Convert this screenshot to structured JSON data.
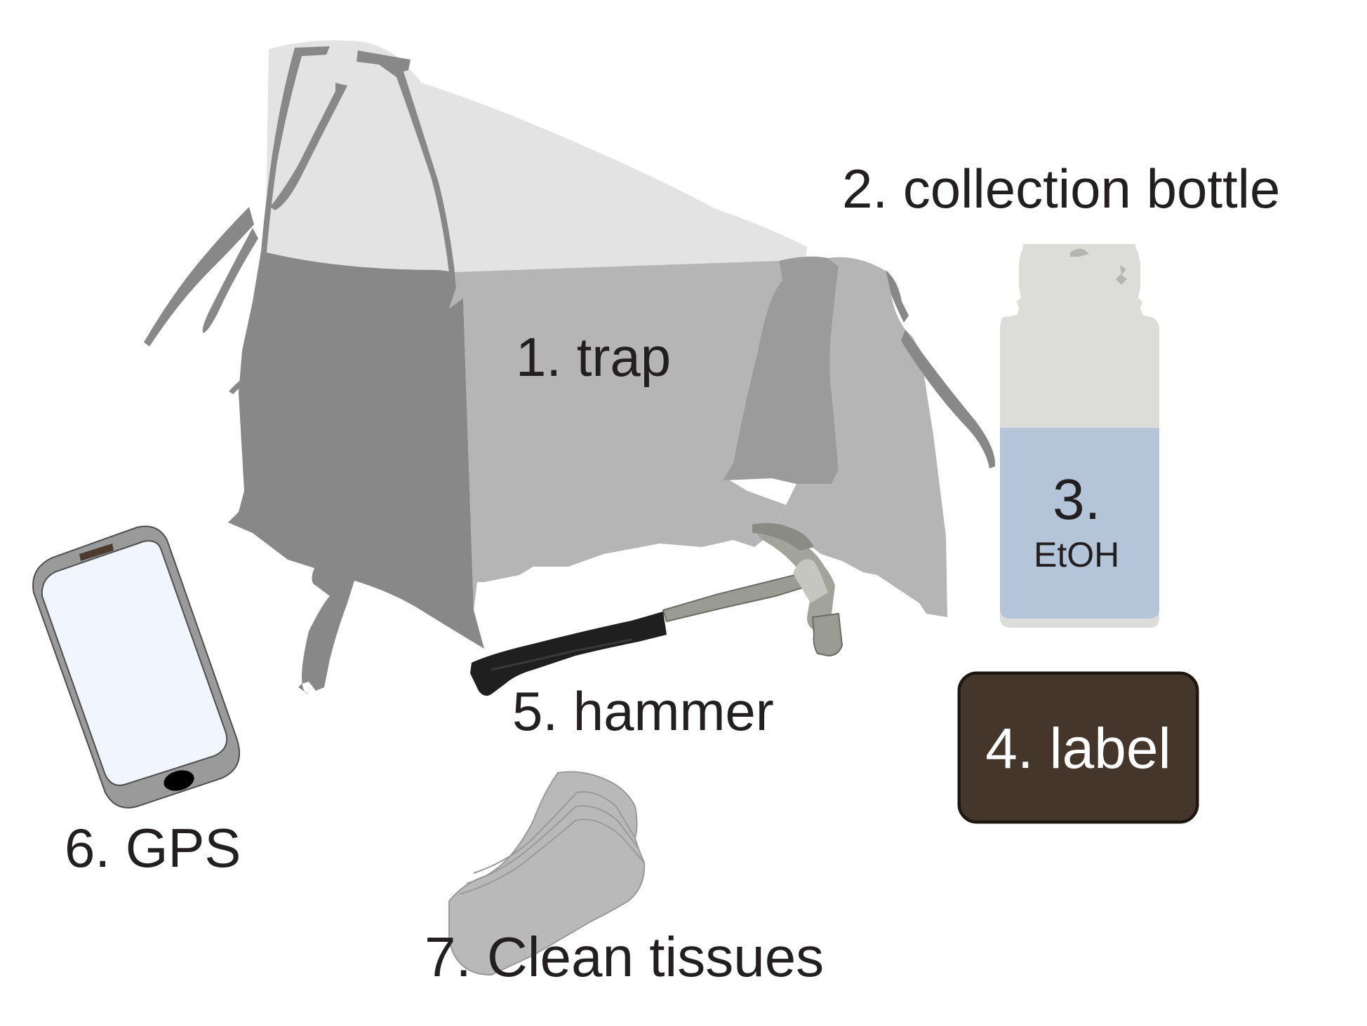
{
  "items": {
    "trap": "1. trap",
    "bottle": "2. collection bottle",
    "etoh_number": "3.",
    "etoh_name": "EtOH",
    "label": "4. label",
    "hammer": "5. hammer",
    "gps": "6. GPS",
    "tissues": "7. Clean tissues"
  },
  "colors": {
    "background": "#ffffff",
    "text": "#231f20",
    "trap_light": "#e3e3e3",
    "trap_mid": "#b5b5b5",
    "trap_dark": "#888888",
    "bottle_cap": "#dcdcd8",
    "ethanol": "#b4c5da",
    "label_box": "#44362a",
    "hammer_grip": "#1f1f1f",
    "hammer_steel": "#9a9b93",
    "phone_body": "#9a9a9a",
    "phone_screen": "#f1f5fe",
    "tissues": "#b9b9b9"
  },
  "icons": [
    "trap-icon",
    "collection-bottle-icon",
    "hammer-icon",
    "gps-phone-icon",
    "tissues-icon"
  ]
}
